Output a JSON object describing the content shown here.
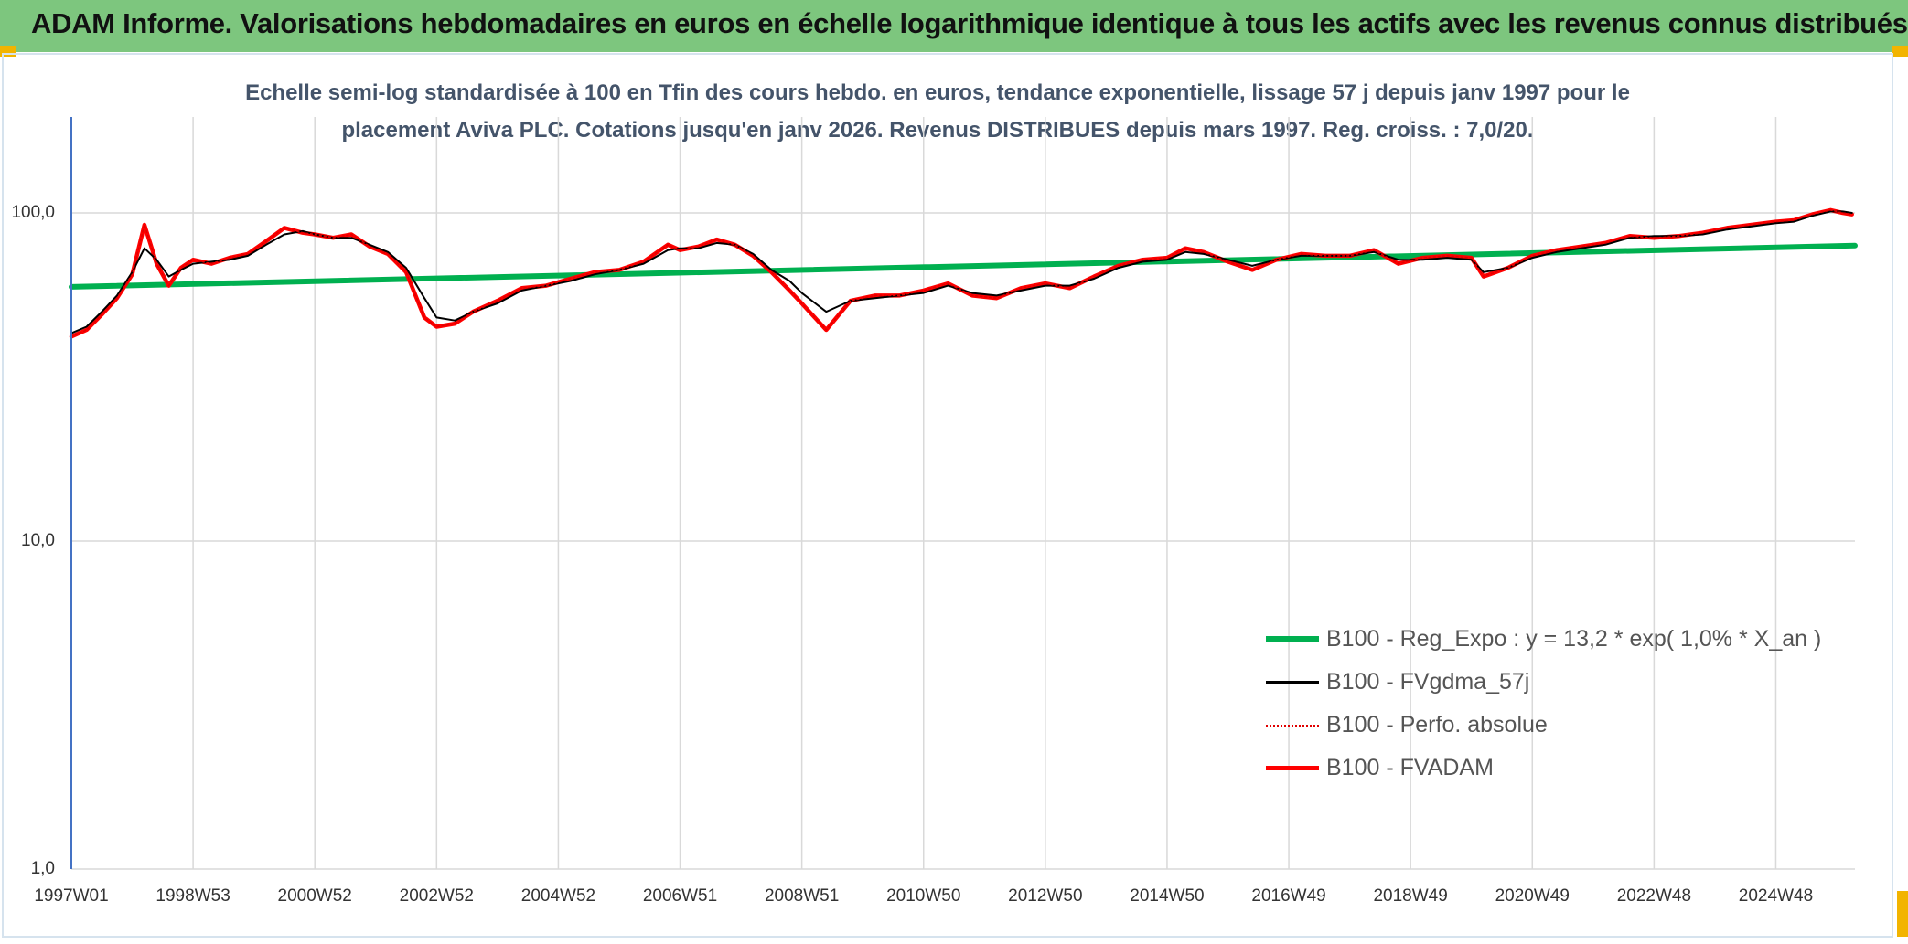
{
  "page": {
    "banner_title": "ADAM Informe. Valorisations hebdomadaires en euros en échelle logarithmique identique à tous les actifs avec les revenus connus distribués",
    "subtitle_line1": "Echelle semi-log standardisée à 100 en Tfin des cours hebdo. en euros, tendance exponentielle, lissage 57 j depuis janv 1997 pour le",
    "subtitle_line2": "placement Aviva PLC. Cotations jusqu'en janv 2026. Revenus DISTRIBUES depuis mars 1997. Reg. croiss. : 7,0/20."
  },
  "colors": {
    "banner": "#7dc67e",
    "trend": "#00b050",
    "smooth": "#000000",
    "perfo": "#e00000",
    "fvadam": "#ff0000",
    "grid": "#d9d9d9",
    "axis": "#4472c4",
    "corner": "#f2b400"
  },
  "chart_data": {
    "type": "line",
    "title": "",
    "xlabel": "",
    "ylabel": "",
    "yscale": "log",
    "ylim": [
      1,
      180
    ],
    "xlim": [
      1997.0,
      2026.3
    ],
    "grid": true,
    "legend_position": "bottom-right",
    "y_ticks": [
      {
        "value": 100,
        "label": "100,0"
      },
      {
        "value": 10,
        "label": "10,0"
      },
      {
        "value": 1,
        "label": "1,0"
      }
    ],
    "x_ticks": [
      {
        "value": 1997.0,
        "label": "1997W01"
      },
      {
        "value": 1999.0,
        "label": "1998W53"
      },
      {
        "value": 2001.0,
        "label": "2000W52"
      },
      {
        "value": 2003.0,
        "label": "2002W52"
      },
      {
        "value": 2005.0,
        "label": "2004W52"
      },
      {
        "value": 2007.0,
        "label": "2006W51"
      },
      {
        "value": 2009.0,
        "label": "2008W51"
      },
      {
        "value": 2011.0,
        "label": "2010W50"
      },
      {
        "value": 2013.0,
        "label": "2012W50"
      },
      {
        "value": 2015.0,
        "label": "2014W50"
      },
      {
        "value": 2017.0,
        "label": "2016W49"
      },
      {
        "value": 2019.0,
        "label": "2018W49"
      },
      {
        "value": 2021.0,
        "label": "2020W49"
      },
      {
        "value": 2023.0,
        "label": "2022W48"
      },
      {
        "value": 2025.0,
        "label": "2024W48"
      }
    ],
    "series": [
      {
        "name": "B100 - Reg_Expo : y = 13,2 * exp( 1,0% *  X_an )",
        "style": "trend",
        "x": [
          1997.0,
          2026.3
        ],
        "y": [
          59.5,
          79.5
        ]
      },
      {
        "name": "B100 - FVgdma_57j",
        "style": "smooth",
        "x": [
          1997.0,
          1997.25,
          1997.5,
          1997.75,
          1998.0,
          1998.2,
          1998.4,
          1998.6,
          1998.8,
          1999.0,
          1999.3,
          1999.6,
          1999.9,
          2000.2,
          2000.5,
          2000.8,
          2001.0,
          2001.3,
          2001.6,
          2001.9,
          2002.2,
          2002.5,
          2002.8,
          2003.0,
          2003.3,
          2003.6,
          2004.0,
          2004.4,
          2004.8,
          2005.2,
          2005.6,
          2006.0,
          2006.4,
          2006.8,
          2007.0,
          2007.3,
          2007.6,
          2007.9,
          2008.2,
          2008.5,
          2008.8,
          2009.0,
          2009.4,
          2009.8,
          2010.2,
          2010.6,
          2011.0,
          2011.4,
          2011.8,
          2012.2,
          2012.6,
          2013.0,
          2013.4,
          2013.8,
          2014.2,
          2014.6,
          2015.0,
          2015.3,
          2015.6,
          2016.0,
          2016.4,
          2016.8,
          2017.2,
          2017.6,
          2018.0,
          2018.4,
          2018.8,
          2019.2,
          2019.6,
          2020.0,
          2020.2,
          2020.6,
          2021.0,
          2021.4,
          2021.8,
          2022.2,
          2022.6,
          2023.0,
          2023.4,
          2023.8,
          2024.2,
          2024.6,
          2025.0,
          2025.3,
          2025.6,
          2025.9,
          2026.1,
          2026.25
        ],
        "y": [
          43,
          45,
          50,
          56,
          66,
          78,
          72,
          64,
          67,
          70,
          71,
          72,
          74,
          80,
          86,
          88,
          86,
          84,
          84,
          80,
          76,
          68,
          55,
          48,
          47,
          50,
          53,
          58,
          60,
          62,
          65,
          67,
          70,
          77,
          78,
          78,
          81,
          80,
          75,
          67,
          62,
          57,
          50,
          54,
          55,
          56,
          57,
          60,
          57,
          56,
          58,
          60,
          60,
          63,
          68,
          71,
          72,
          76,
          75,
          72,
          69,
          72,
          74,
          74,
          74,
          76,
          72,
          72,
          73,
          72,
          66,
          68,
          73,
          76,
          78,
          80,
          84,
          85,
          85,
          86,
          89,
          91,
          93,
          94,
          98,
          101,
          101,
          100
        ]
      },
      {
        "name": "B100 - Perfo. absolue",
        "style": "perfo",
        "x": [
          1997.0,
          1997.25,
          1997.5,
          1997.75,
          1998.0,
          1998.2,
          1998.4,
          1998.6,
          1998.8,
          1999.0,
          1999.3,
          1999.6,
          1999.9,
          2000.2,
          2000.5,
          2000.8,
          2001.0,
          2001.3,
          2001.6,
          2001.9,
          2002.2,
          2002.5,
          2002.8,
          2003.0,
          2003.3,
          2003.6,
          2004.0,
          2004.4,
          2004.8,
          2005.2,
          2005.6,
          2006.0,
          2006.4,
          2006.8,
          2007.0,
          2007.3,
          2007.6,
          2007.9,
          2008.2,
          2008.5,
          2008.8,
          2009.0,
          2009.4,
          2009.8,
          2010.2,
          2010.6,
          2011.0,
          2011.4,
          2011.8,
          2012.2,
          2012.6,
          2013.0,
          2013.4,
          2013.8,
          2014.2,
          2014.6,
          2015.0,
          2015.3,
          2015.6,
          2016.0,
          2016.4,
          2016.8,
          2017.2,
          2017.6,
          2018.0,
          2018.4,
          2018.8,
          2019.2,
          2019.6,
          2020.0,
          2020.2,
          2020.6,
          2021.0,
          2021.4,
          2021.8,
          2022.2,
          2022.6,
          2023.0,
          2023.4,
          2023.8,
          2024.2,
          2024.6,
          2025.0,
          2025.3,
          2025.6,
          2025.9,
          2026.1,
          2026.25
        ],
        "y": [
          42,
          44,
          49,
          55,
          65,
          92,
          70,
          60,
          68,
          72,
          70,
          73,
          75,
          82,
          90,
          87,
          86,
          84,
          86,
          79,
          75,
          66,
          48,
          45,
          46,
          50,
          54,
          59,
          60,
          63,
          66,
          67,
          71,
          80,
          77,
          79,
          83,
          80,
          74,
          66,
          58,
          53,
          44,
          54,
          56,
          56,
          58,
          61,
          56,
          55,
          59,
          61,
          59,
          64,
          69,
          72,
          73,
          78,
          76,
          71,
          67,
          72,
          75,
          74,
          74,
          77,
          70,
          73,
          74,
          73,
          64,
          68,
          74,
          77,
          79,
          81,
          85,
          84,
          85,
          87,
          90,
          92,
          94,
          95,
          99,
          102,
          100,
          99
        ]
      },
      {
        "name": "B100 - FVADAM",
        "style": "fvadam",
        "x": [
          1997.0,
          1997.25,
          1997.5,
          1997.75,
          1998.0,
          1998.2,
          1998.4,
          1998.6,
          1998.8,
          1999.0,
          1999.3,
          1999.6,
          1999.9,
          2000.2,
          2000.5,
          2000.8,
          2001.0,
          2001.3,
          2001.6,
          2001.9,
          2002.2,
          2002.5,
          2002.8,
          2003.0,
          2003.3,
          2003.6,
          2004.0,
          2004.4,
          2004.8,
          2005.2,
          2005.6,
          2006.0,
          2006.4,
          2006.8,
          2007.0,
          2007.3,
          2007.6,
          2007.9,
          2008.2,
          2008.5,
          2008.8,
          2009.0,
          2009.4,
          2009.8,
          2010.2,
          2010.6,
          2011.0,
          2011.4,
          2011.8,
          2012.2,
          2012.6,
          2013.0,
          2013.4,
          2013.8,
          2014.2,
          2014.6,
          2015.0,
          2015.3,
          2015.6,
          2016.0,
          2016.4,
          2016.8,
          2017.2,
          2017.6,
          2018.0,
          2018.4,
          2018.8,
          2019.2,
          2019.6,
          2020.0,
          2020.2,
          2020.6,
          2021.0,
          2021.4,
          2021.8,
          2022.2,
          2022.6,
          2023.0,
          2023.4,
          2023.8,
          2024.2,
          2024.6,
          2025.0,
          2025.3,
          2025.6,
          2025.9,
          2026.1,
          2026.25
        ],
        "y": [
          42,
          44,
          49,
          55,
          65,
          92,
          70,
          60,
          68,
          72,
          70,
          73,
          75,
          82,
          90,
          87,
          86,
          84,
          86,
          79,
          75,
          66,
          48,
          45,
          46,
          50,
          54,
          59,
          60,
          63,
          66,
          67,
          71,
          80,
          77,
          79,
          83,
          80,
          74,
          66,
          58,
          53,
          44,
          54,
          56,
          56,
          58,
          61,
          56,
          55,
          59,
          61,
          59,
          64,
          69,
          72,
          73,
          78,
          76,
          71,
          67,
          72,
          75,
          74,
          74,
          77,
          70,
          73,
          74,
          73,
          64,
          68,
          74,
          77,
          79,
          81,
          85,
          84,
          85,
          87,
          90,
          92,
          94,
          95,
          99,
          102,
          100,
          99
        ]
      }
    ]
  }
}
